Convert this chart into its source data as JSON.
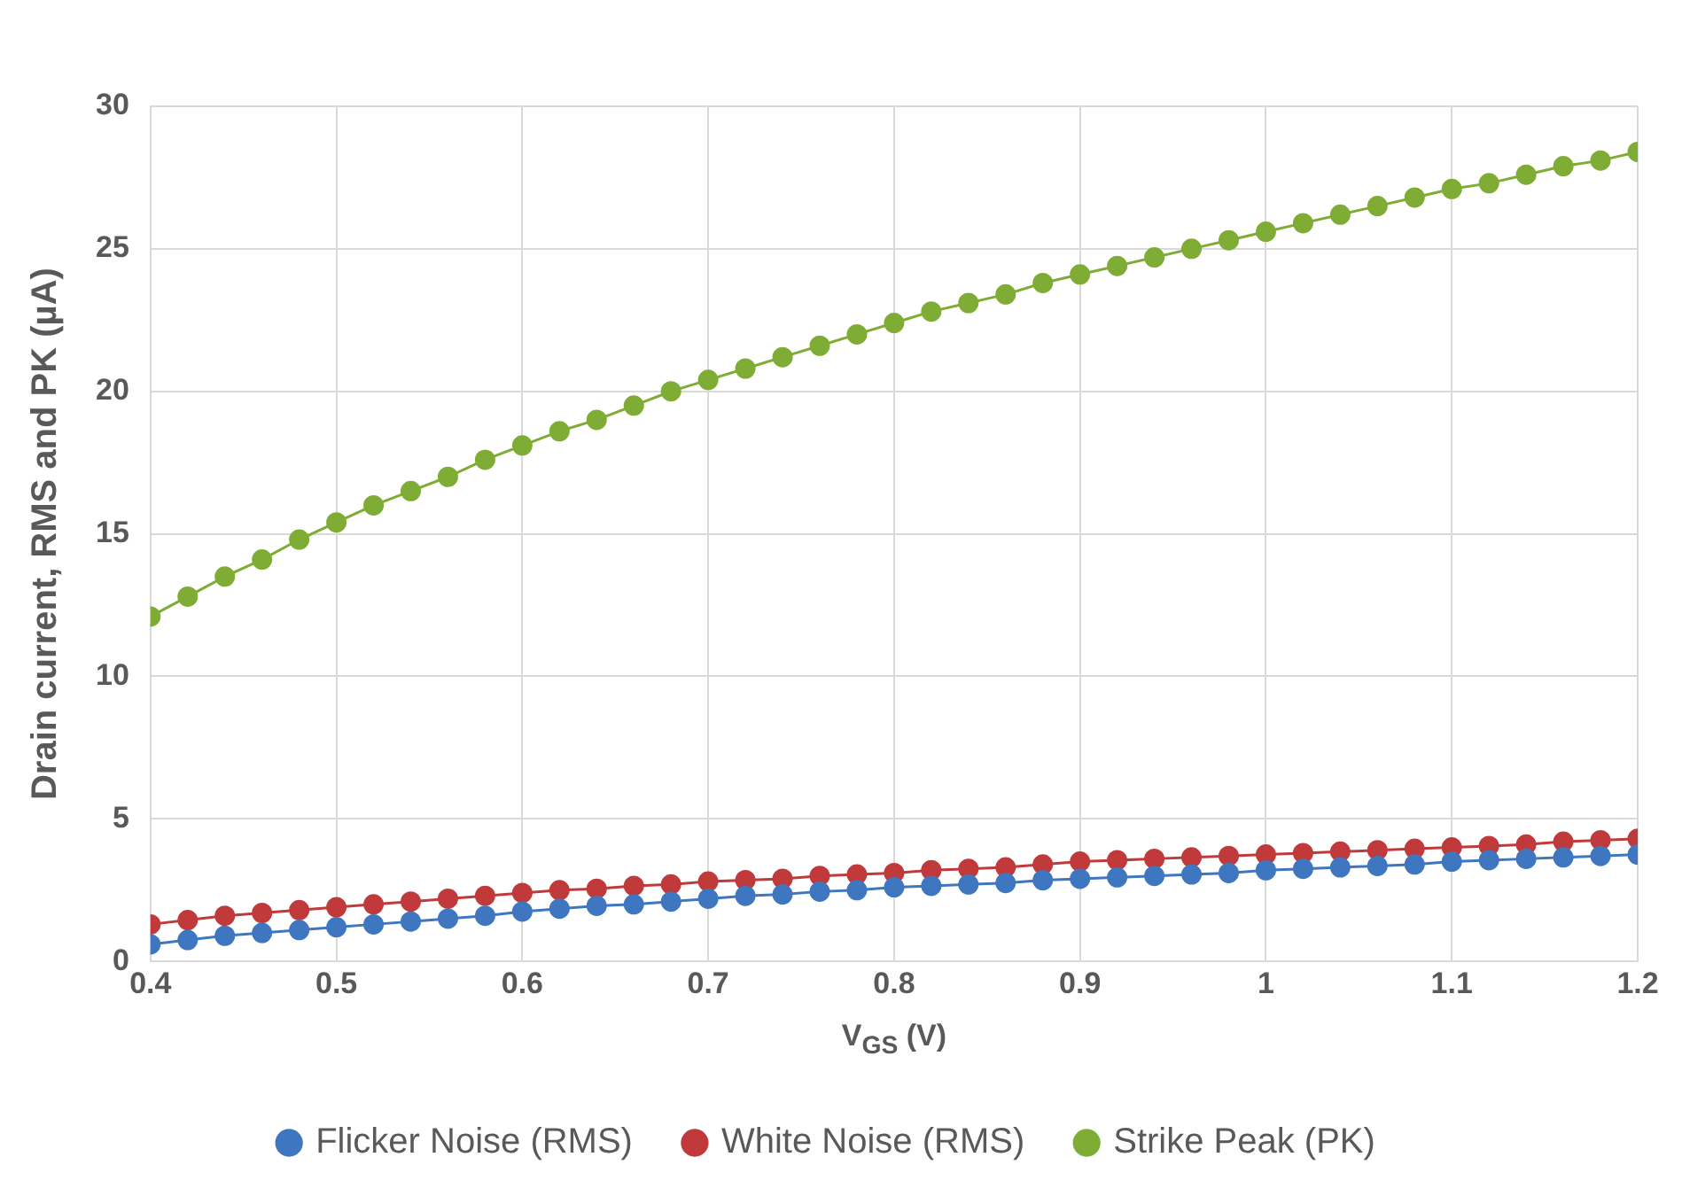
{
  "chart_data": {
    "type": "line",
    "xlabel": "V$_{GS}$ (V)",
    "ylabel": "Drain current, RMS and PK (µA)",
    "x": [
      0.4,
      0.42,
      0.44,
      0.46,
      0.48,
      0.5,
      0.52,
      0.54,
      0.56,
      0.58,
      0.6,
      0.62,
      0.64,
      0.66,
      0.68,
      0.7,
      0.72,
      0.74,
      0.76,
      0.78,
      0.8,
      0.82,
      0.84,
      0.86,
      0.88,
      0.9,
      0.92,
      0.94,
      0.96,
      0.98,
      1.0,
      1.02,
      1.04,
      1.06,
      1.08,
      1.1,
      1.12,
      1.14,
      1.16,
      1.18,
      1.2
    ],
    "series": [
      {
        "name": "Flicker Noise (RMS)",
        "color": "#3f76c0",
        "values": [
          0.6,
          0.75,
          0.9,
          1.0,
          1.1,
          1.2,
          1.3,
          1.4,
          1.5,
          1.6,
          1.75,
          1.85,
          1.95,
          2.0,
          2.1,
          2.2,
          2.3,
          2.35,
          2.45,
          2.5,
          2.6,
          2.65,
          2.7,
          2.75,
          2.85,
          2.9,
          2.95,
          3.0,
          3.05,
          3.1,
          3.2,
          3.25,
          3.3,
          3.35,
          3.4,
          3.5,
          3.55,
          3.6,
          3.65,
          3.7,
          3.75
        ]
      },
      {
        "name": "White Noise (RMS)",
        "color": "#c0393b",
        "values": [
          1.3,
          1.45,
          1.6,
          1.7,
          1.8,
          1.9,
          2.0,
          2.1,
          2.2,
          2.3,
          2.4,
          2.5,
          2.55,
          2.65,
          2.7,
          2.8,
          2.85,
          2.9,
          3.0,
          3.05,
          3.1,
          3.2,
          3.25,
          3.3,
          3.4,
          3.5,
          3.55,
          3.6,
          3.65,
          3.7,
          3.75,
          3.8,
          3.85,
          3.9,
          3.95,
          4.0,
          4.05,
          4.1,
          4.2,
          4.25,
          4.3
        ]
      },
      {
        "name": "Strike Peak (PK)",
        "color": "#7fac34",
        "values": [
          12.1,
          12.8,
          13.5,
          14.1,
          14.8,
          15.4,
          16.0,
          16.5,
          17.0,
          17.6,
          18.1,
          18.6,
          19.0,
          19.5,
          20.0,
          20.4,
          20.8,
          21.2,
          21.6,
          22.0,
          22.4,
          22.8,
          23.1,
          23.4,
          23.8,
          24.1,
          24.4,
          24.7,
          25.0,
          25.3,
          25.6,
          25.9,
          26.2,
          26.5,
          26.8,
          27.1,
          27.3,
          27.6,
          27.9,
          28.1,
          28.4
        ]
      }
    ],
    "xlim": [
      0.4,
      1.2
    ],
    "xticks": [
      0.4,
      0.5,
      0.6,
      0.7,
      0.8,
      0.9,
      1,
      1.1,
      1.2
    ],
    "ylim": [
      0,
      30
    ],
    "yticks": [
      0,
      5,
      10,
      15,
      20,
      25,
      30
    ],
    "grid": true,
    "legend": "bottom",
    "marker": "circle",
    "line_style": "solid"
  }
}
